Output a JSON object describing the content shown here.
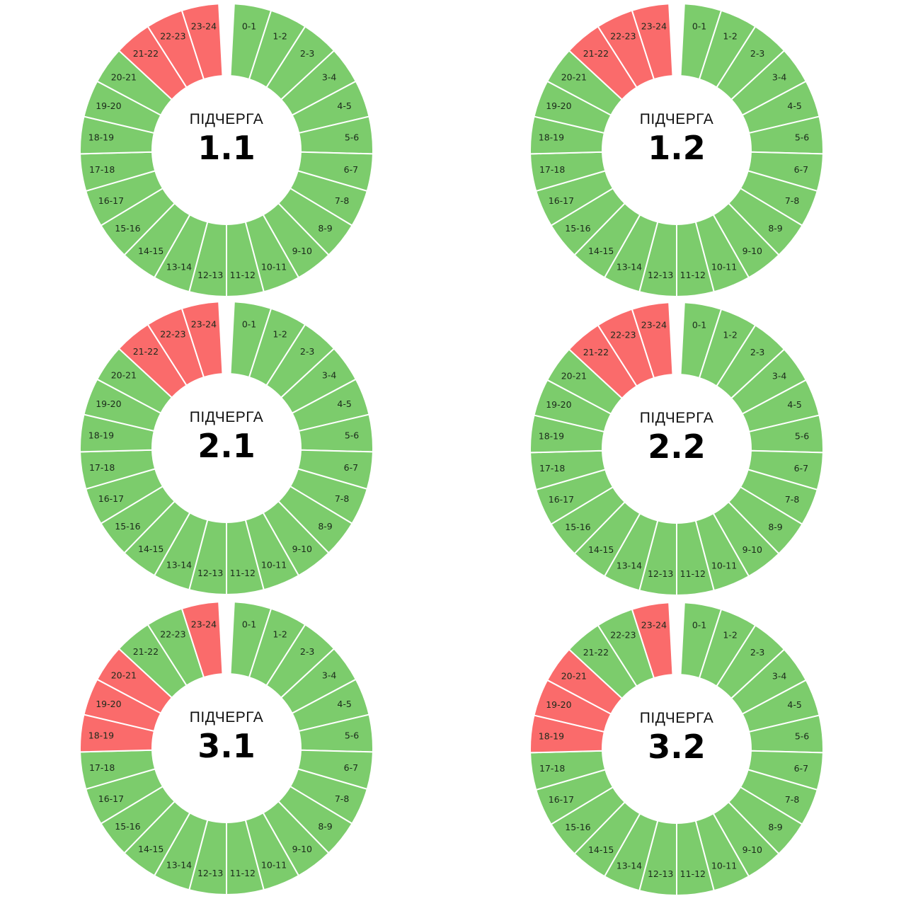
{
  "colors": {
    "on": "#7ccc6c",
    "off": "#fa6b6b",
    "divider": "#ffffff"
  },
  "center_label": "ПІДЧЕРГА",
  "chart_data": [
    {
      "type": "pie",
      "title": "1.1",
      "categories": [
        "0-1",
        "1-2",
        "2-3",
        "3-4",
        "4-5",
        "5-6",
        "6-7",
        "7-8",
        "8-9",
        "9-10",
        "10-11",
        "11-12",
        "12-13",
        "13-14",
        "14-15",
        "15-16",
        "16-17",
        "17-18",
        "18-19",
        "19-20",
        "20-21",
        "21-22",
        "22-23",
        "23-24"
      ],
      "status": [
        "on",
        "on",
        "on",
        "on",
        "on",
        "on",
        "on",
        "on",
        "on",
        "on",
        "on",
        "on",
        "on",
        "on",
        "on",
        "on",
        "on",
        "on",
        "on",
        "on",
        "on",
        "off",
        "off",
        "off"
      ]
    },
    {
      "type": "pie",
      "title": "1.2",
      "categories": [
        "0-1",
        "1-2",
        "2-3",
        "3-4",
        "4-5",
        "5-6",
        "6-7",
        "7-8",
        "8-9",
        "9-10",
        "10-11",
        "11-12",
        "12-13",
        "13-14",
        "14-15",
        "15-16",
        "16-17",
        "17-18",
        "18-19",
        "19-20",
        "20-21",
        "21-22",
        "22-23",
        "23-24"
      ],
      "status": [
        "on",
        "on",
        "on",
        "on",
        "on",
        "on",
        "on",
        "on",
        "on",
        "on",
        "on",
        "on",
        "on",
        "on",
        "on",
        "on",
        "on",
        "on",
        "on",
        "on",
        "on",
        "off",
        "off",
        "off"
      ]
    },
    {
      "type": "pie",
      "title": "2.1",
      "categories": [
        "0-1",
        "1-2",
        "2-3",
        "3-4",
        "4-5",
        "5-6",
        "6-7",
        "7-8",
        "8-9",
        "9-10",
        "10-11",
        "11-12",
        "12-13",
        "13-14",
        "14-15",
        "15-16",
        "16-17",
        "17-18",
        "18-19",
        "19-20",
        "20-21",
        "21-22",
        "22-23",
        "23-24"
      ],
      "status": [
        "on",
        "on",
        "on",
        "on",
        "on",
        "on",
        "on",
        "on",
        "on",
        "on",
        "on",
        "on",
        "on",
        "on",
        "on",
        "on",
        "on",
        "on",
        "on",
        "on",
        "on",
        "off",
        "off",
        "off"
      ]
    },
    {
      "type": "pie",
      "title": "2.2",
      "categories": [
        "0-1",
        "1-2",
        "2-3",
        "3-4",
        "4-5",
        "5-6",
        "6-7",
        "7-8",
        "8-9",
        "9-10",
        "10-11",
        "11-12",
        "12-13",
        "13-14",
        "14-15",
        "15-16",
        "16-17",
        "17-18",
        "18-19",
        "19-20",
        "20-21",
        "21-22",
        "22-23",
        "23-24"
      ],
      "status": [
        "on",
        "on",
        "on",
        "on",
        "on",
        "on",
        "on",
        "on",
        "on",
        "on",
        "on",
        "on",
        "on",
        "on",
        "on",
        "on",
        "on",
        "on",
        "on",
        "on",
        "on",
        "off",
        "off",
        "off"
      ]
    },
    {
      "type": "pie",
      "title": "3.1",
      "categories": [
        "0-1",
        "1-2",
        "2-3",
        "3-4",
        "4-5",
        "5-6",
        "6-7",
        "7-8",
        "8-9",
        "9-10",
        "10-11",
        "11-12",
        "12-13",
        "13-14",
        "14-15",
        "15-16",
        "16-17",
        "17-18",
        "18-19",
        "19-20",
        "20-21",
        "21-22",
        "22-23",
        "23-24"
      ],
      "status": [
        "on",
        "on",
        "on",
        "on",
        "on",
        "on",
        "on",
        "on",
        "on",
        "on",
        "on",
        "on",
        "on",
        "on",
        "on",
        "on",
        "on",
        "on",
        "off",
        "off",
        "off",
        "on",
        "on",
        "off"
      ]
    },
    {
      "type": "pie",
      "title": "3.2",
      "categories": [
        "0-1",
        "1-2",
        "2-3",
        "3-4",
        "4-5",
        "5-6",
        "6-7",
        "7-8",
        "8-9",
        "9-10",
        "10-11",
        "11-12",
        "12-13",
        "13-14",
        "14-15",
        "15-16",
        "16-17",
        "17-18",
        "18-19",
        "19-20",
        "20-21",
        "21-22",
        "22-23",
        "23-24"
      ],
      "status": [
        "on",
        "on",
        "on",
        "on",
        "on",
        "on",
        "on",
        "on",
        "on",
        "on",
        "on",
        "on",
        "on",
        "on",
        "on",
        "on",
        "on",
        "on",
        "off",
        "off",
        "off",
        "on",
        "on",
        "off"
      ]
    }
  ]
}
